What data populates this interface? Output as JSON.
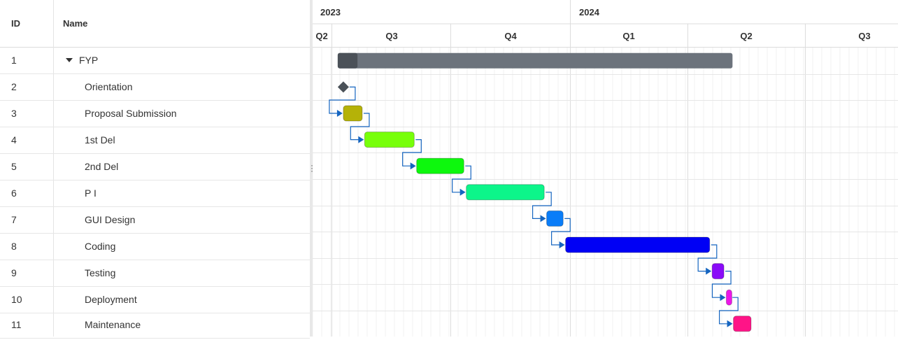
{
  "grid": {
    "columns": {
      "id": "ID",
      "name": "Name"
    },
    "rows": [
      {
        "id": "1",
        "name": "FYP",
        "summary": true
      },
      {
        "id": "2",
        "name": "Orientation"
      },
      {
        "id": "3",
        "name": "Proposal Submission"
      },
      {
        "id": "4",
        "name": "1st Del"
      },
      {
        "id": "5",
        "name": "2nd Del"
      },
      {
        "id": "6",
        "name": "P I"
      },
      {
        "id": "7",
        "name": "GUI Design"
      },
      {
        "id": "8",
        "name": "Coding"
      },
      {
        "id": "9",
        "name": "Testing"
      },
      {
        "id": "10",
        "name": "Deployment"
      },
      {
        "id": "11",
        "name": "Maintenance"
      }
    ]
  },
  "timeline": {
    "years": [
      "2023",
      "2024"
    ],
    "quarters": [
      "Q2",
      "Q3",
      "Q4",
      "Q1",
      "Q2",
      "Q3"
    ]
  },
  "tasks": [
    {
      "row": 0,
      "start": 0.1,
      "end": 3.44,
      "color": "#6c737c",
      "progress": 0.05,
      "progress_color": "#4b5158",
      "type": "summary"
    },
    {
      "row": 1,
      "start": 0.1,
      "end": 0.1,
      "color": "#4a5158",
      "type": "milestone"
    },
    {
      "row": 2,
      "start": 0.1,
      "end": 0.26,
      "color": "#b5b208",
      "type": "task"
    },
    {
      "row": 3,
      "start": 0.28,
      "end": 0.7,
      "color": "#77ff0a",
      "type": "task"
    },
    {
      "row": 4,
      "start": 0.72,
      "end": 1.12,
      "color": "#0df80d",
      "type": "task"
    },
    {
      "row": 5,
      "start": 1.14,
      "end": 1.8,
      "color": "#0cf58a",
      "type": "task"
    },
    {
      "row": 6,
      "start": 1.82,
      "end": 1.96,
      "color": "#0a7df8",
      "type": "task"
    },
    {
      "row": 7,
      "start": 1.98,
      "end": 3.2,
      "color": "#0000f5",
      "type": "task"
    },
    {
      "row": 8,
      "start": 3.22,
      "end": 3.32,
      "color": "#8a0bf8",
      "type": "task"
    },
    {
      "row": 9,
      "start": 3.34,
      "end": 3.38,
      "color": "#ec16e8",
      "type": "task"
    },
    {
      "row": 10,
      "start": 3.4,
      "end": 3.55,
      "color": "#ff1487",
      "type": "task"
    }
  ],
  "colors": {
    "dependency": "#1565c0",
    "grid_line": "#e6e6e6",
    "minor_line": "#f2f2f2"
  }
}
